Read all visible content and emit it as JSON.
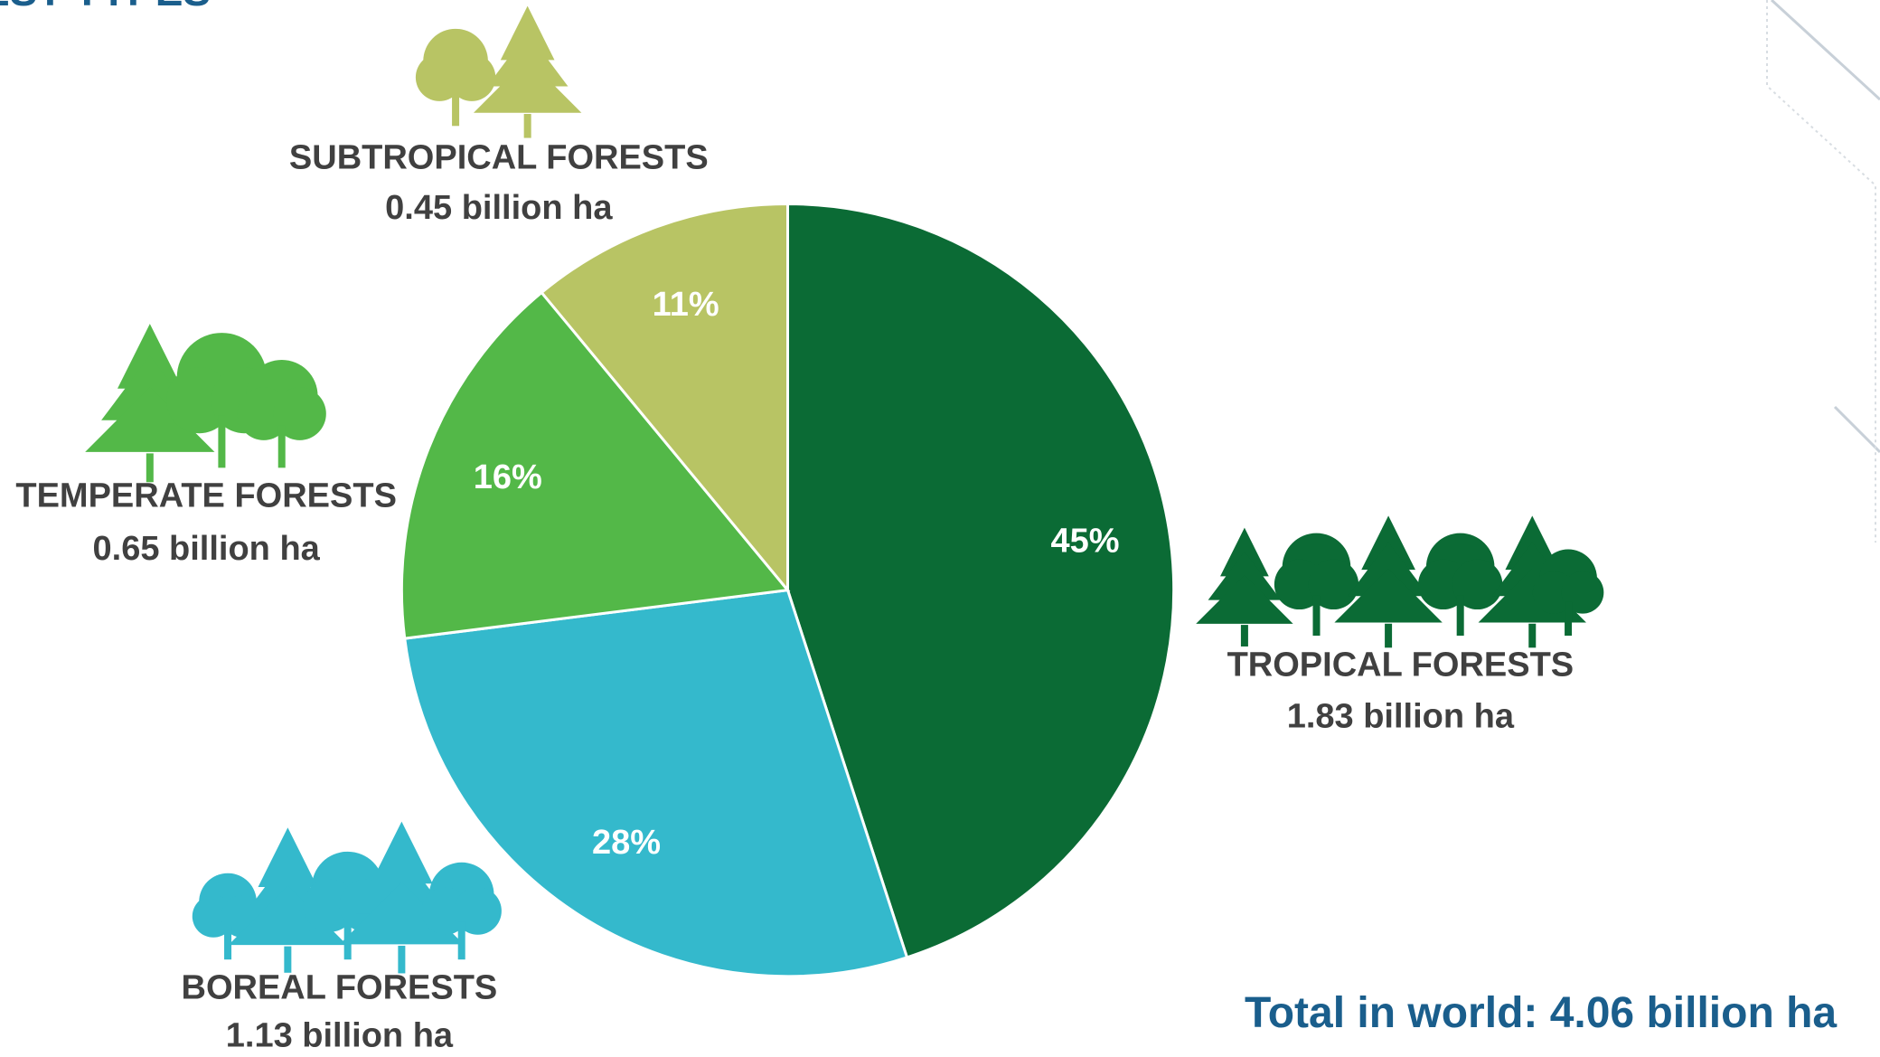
{
  "chart_data": {
    "type": "pie",
    "title": "EST TYPES",
    "categories": [
      "TROPICAL FORESTS",
      "BOREAL FORESTS",
      "TEMPERATE FORESTS",
      "SUBTROPICAL FORESTS"
    ],
    "values": [
      45,
      28,
      16,
      11
    ],
    "value_labels": [
      "45%",
      "28%",
      "16%",
      "11%"
    ],
    "area_labels": [
      "1.83 billion ha",
      "1.13 billion ha",
      "0.65 billion ha",
      "0.45 billion ha"
    ],
    "colors": [
      "#0b6b35",
      "#34b9cc",
      "#53b848",
      "#b8c464"
    ],
    "total_label": "Total in world: 4.06 billion ha"
  }
}
